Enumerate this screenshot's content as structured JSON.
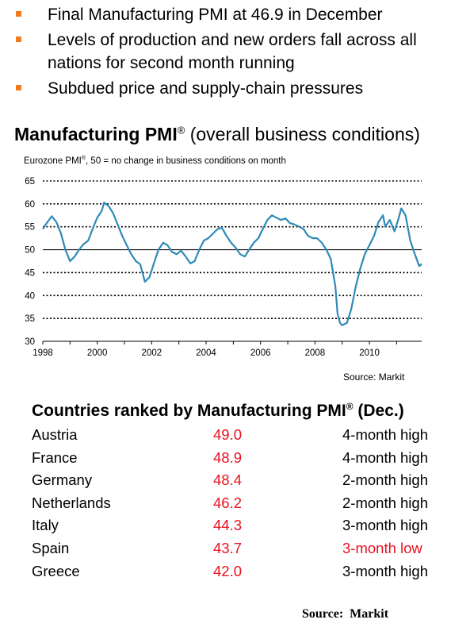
{
  "bullets": [
    "Final Manufacturing PMI at 46.9 in December",
    "Levels of production and new orders fall across all nations for second month running",
    "Subdued price and supply-chain pressures"
  ],
  "chart_title_bold": "Manufacturing PMI",
  "chart_title_reg": "®",
  "chart_title_rest": " (overall business conditions)",
  "chart_subtitle_a": "Eurozone PMI",
  "chart_subtitle_reg": "®",
  "chart_subtitle_b": ", 50 = no change in business conditions on month",
  "chart_source": "Source: Markit",
  "chart_data": {
    "type": "line",
    "title": "Manufacturing PMI® (overall business conditions)",
    "subtitle": "Eurozone PMI®, 50 = no change in business conditions on month",
    "ylim": [
      30,
      65
    ],
    "yticks": [
      65,
      60,
      55,
      50,
      45,
      40,
      35,
      30
    ],
    "xlim": [
      1998.0,
      2011.92
    ],
    "xticks": [
      1998,
      2000,
      2002,
      2004,
      2006,
      2008,
      2010
    ],
    "grid": "dotted horizontal",
    "reference_line": 50,
    "series": [
      {
        "color": "#2e8ab5",
        "points": [
          [
            1998.0,
            54.5
          ],
          [
            1998.17,
            56.0
          ],
          [
            1998.33,
            57.3
          ],
          [
            1998.5,
            56.0
          ],
          [
            1998.67,
            53.5
          ],
          [
            1998.83,
            50.0
          ],
          [
            1999.0,
            47.5
          ],
          [
            1999.17,
            48.5
          ],
          [
            1999.33,
            50.0
          ],
          [
            1999.5,
            51.2
          ],
          [
            1999.67,
            52.0
          ],
          [
            1999.83,
            54.5
          ],
          [
            2000.0,
            57.0
          ],
          [
            2000.17,
            58.5
          ],
          [
            2000.25,
            60.3
          ],
          [
            2000.42,
            59.5
          ],
          [
            2000.58,
            58.0
          ],
          [
            2000.75,
            55.5
          ],
          [
            2000.92,
            53.0
          ],
          [
            2001.08,
            51.0
          ],
          [
            2001.25,
            49.0
          ],
          [
            2001.42,
            47.5
          ],
          [
            2001.58,
            46.8
          ],
          [
            2001.75,
            43.0
          ],
          [
            2001.92,
            44.0
          ],
          [
            2002.08,
            47.0
          ],
          [
            2002.25,
            50.0
          ],
          [
            2002.42,
            51.5
          ],
          [
            2002.58,
            51.0
          ],
          [
            2002.75,
            49.5
          ],
          [
            2002.92,
            49.0
          ],
          [
            2003.08,
            49.8
          ],
          [
            2003.25,
            48.5
          ],
          [
            2003.42,
            47.0
          ],
          [
            2003.58,
            47.5
          ],
          [
            2003.75,
            50.0
          ],
          [
            2003.92,
            52.0
          ],
          [
            2004.08,
            52.5
          ],
          [
            2004.25,
            53.5
          ],
          [
            2004.42,
            54.5
          ],
          [
            2004.58,
            54.8
          ],
          [
            2004.75,
            53.0
          ],
          [
            2004.92,
            51.5
          ],
          [
            2005.08,
            50.5
          ],
          [
            2005.25,
            49.0
          ],
          [
            2005.42,
            48.5
          ],
          [
            2005.58,
            50.0
          ],
          [
            2005.75,
            51.5
          ],
          [
            2005.92,
            52.5
          ],
          [
            2006.08,
            54.5
          ],
          [
            2006.25,
            56.5
          ],
          [
            2006.42,
            57.5
          ],
          [
            2006.58,
            57.0
          ],
          [
            2006.75,
            56.5
          ],
          [
            2006.92,
            56.8
          ],
          [
            2007.08,
            55.8
          ],
          [
            2007.25,
            55.5
          ],
          [
            2007.42,
            55.0
          ],
          [
            2007.58,
            54.5
          ],
          [
            2007.75,
            53.0
          ],
          [
            2007.92,
            52.5
          ],
          [
            2008.08,
            52.5
          ],
          [
            2008.25,
            51.5
          ],
          [
            2008.42,
            50.0
          ],
          [
            2008.58,
            48.0
          ],
          [
            2008.75,
            42.0
          ],
          [
            2008.83,
            36.0
          ],
          [
            2008.92,
            34.0
          ],
          [
            2009.0,
            33.5
          ],
          [
            2009.17,
            34.0
          ],
          [
            2009.33,
            37.0
          ],
          [
            2009.5,
            42.0
          ],
          [
            2009.67,
            46.0
          ],
          [
            2009.83,
            49.0
          ],
          [
            2010.0,
            51.0
          ],
          [
            2010.17,
            53.0
          ],
          [
            2010.33,
            56.0
          ],
          [
            2010.5,
            57.5
          ],
          [
            2010.58,
            55.0
          ],
          [
            2010.75,
            56.5
          ],
          [
            2010.92,
            54.0
          ],
          [
            2011.08,
            57.0
          ],
          [
            2011.17,
            59.0
          ],
          [
            2011.33,
            57.5
          ],
          [
            2011.5,
            52.0
          ],
          [
            2011.67,
            49.0
          ],
          [
            2011.83,
            46.4
          ],
          [
            2011.92,
            46.9
          ]
        ]
      }
    ]
  },
  "table_title_text": "Countries ranked by Manufacturing PMI",
  "table_title_reg": "®",
  "table_title_suffix": " (Dec.)",
  "rows": [
    {
      "country": "Austria",
      "value": "49.0",
      "status": "4-month high"
    },
    {
      "country": "France",
      "value": "48.9",
      "status": "4-month high"
    },
    {
      "country": "Germany",
      "value": "48.4",
      "status": "2-month high"
    },
    {
      "country": "Netherlands",
      "value": "46.2",
      "status": "2-month high"
    },
    {
      "country": "Italy",
      "value": "44.3",
      "status": "3-month high"
    },
    {
      "country": "Spain",
      "value": "43.7",
      "status": "3-month low"
    },
    {
      "country": "Greece",
      "value": "42.0",
      "status": "3-month high"
    }
  ],
  "footer_source": "Source:  Markit",
  "colors": {
    "bullet": "#f07a1e",
    "line": "#2e8ab5",
    "value": "#e8121f",
    "low_status": "#e8121f"
  }
}
